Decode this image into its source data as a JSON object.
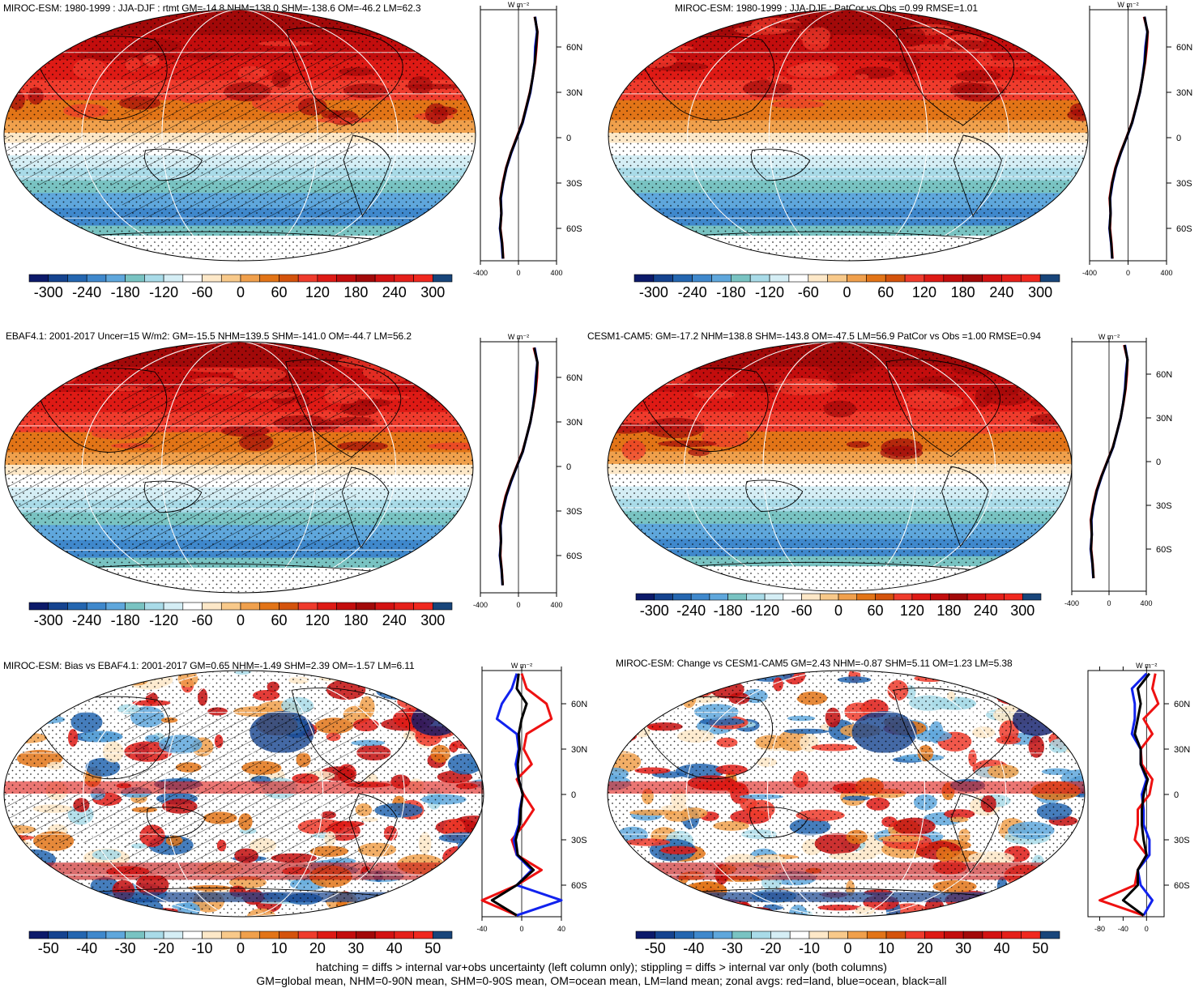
{
  "colors": {
    "full_scale": [
      "#0c1a6a",
      "#15438f",
      "#2466b0",
      "#3f88cc",
      "#5fa7dc",
      "#79c3c2",
      "#a9dbe8",
      "#d5eef5",
      "#ffffff",
      "#fde8c8",
      "#f8c98a",
      "#f0a04c",
      "#e27417",
      "#d4530c",
      "#ef3b2c",
      "#de1a15",
      "#c30d0d",
      "#a20909",
      "#d31212",
      "#e5201a",
      "#f0281f",
      "#18457a"
    ],
    "diff_scale": [
      "#0c1a6a",
      "#15438f",
      "#2466b0",
      "#3f88cc",
      "#5fa7dc",
      "#79c3c2",
      "#a9dbe8",
      "#d5eef5",
      "#ffffff",
      "#fde8c8",
      "#f8c98a",
      "#f0a04c",
      "#e27417",
      "#d4530c",
      "#ef3b2c",
      "#de1a15",
      "#c30d0d",
      "#a20909",
      "#d31212",
      "#e5201a",
      "#f0281f",
      "#18457a"
    ],
    "land_line": "#ee1111",
    "ocean_line": "#1122ee",
    "all_line": "#000000"
  },
  "chart_data": [
    {
      "type": "heatmap",
      "title": "MIROC-ESM: 1980-1999 : JJA-DJF : rtmt GM=-14.8 NHM=138.0 SHM=-138.6 OM=-46.2 LM=62.3",
      "colorbar_labels": [
        "-300",
        "-240",
        "-180",
        "-120",
        "-60",
        "0",
        "60",
        "120",
        "180",
        "240",
        "300"
      ],
      "colorbar_range": [
        -330,
        330
      ],
      "style": "full",
      "hatched": true,
      "zonal": {
        "unit_label": "W m⁻²",
        "xticks": [
          "-400",
          "0",
          "400"
        ],
        "xrange": [
          -400,
          400
        ],
        "lat_labels": [
          "60N",
          "30N",
          "0",
          "30S",
          "60S"
        ],
        "lat_values": [
          60,
          30,
          0,
          -30,
          -60
        ],
        "lat": [
          80,
          70,
          60,
          50,
          40,
          30,
          20,
          10,
          0,
          -10,
          -20,
          -30,
          -40,
          -50,
          -60,
          -70,
          -80
        ],
        "land": [
          170,
          200,
          190,
          175,
          150,
          120,
          80,
          40,
          -20,
          -80,
          -130,
          -165,
          -190,
          -180,
          -190,
          -170,
          -160
        ],
        "ocean": [
          175,
          195,
          175,
          170,
          150,
          125,
          85,
          45,
          -15,
          -75,
          -125,
          -160,
          -185,
          -180,
          -195,
          -175,
          -165
        ],
        "all": [
          172,
          198,
          185,
          172,
          150,
          122,
          82,
          42,
          -17,
          -78,
          -128,
          -162,
          -188,
          -180,
          -192,
          -172,
          -162
        ]
      }
    },
    {
      "type": "heatmap",
      "title": "MIROC-ESM: 1980-1999 : JJA-DJF : PatCor vs Obs =0.99 RMSE=1.01",
      "colorbar_labels": [
        "-300",
        "-240",
        "-180",
        "-120",
        "-60",
        "0",
        "60",
        "120",
        "180",
        "240",
        "300"
      ],
      "colorbar_range": [
        -330,
        330
      ],
      "style": "full",
      "hatched": false,
      "zonal": {
        "unit_label": "W m⁻²",
        "xticks": [
          "-400",
          "0",
          "400"
        ],
        "xrange": [
          -400,
          400
        ],
        "lat_labels": [
          "60N",
          "30N",
          "0",
          "30S",
          "60S"
        ],
        "lat_values": [
          60,
          30,
          0,
          -30,
          -60
        ],
        "lat": [
          80,
          70,
          60,
          50,
          40,
          30,
          20,
          10,
          0,
          -10,
          -20,
          -30,
          -40,
          -50,
          -60,
          -70,
          -80
        ],
        "land": [
          165,
          205,
          195,
          178,
          152,
          122,
          82,
          40,
          -18,
          -80,
          -132,
          -168,
          -192,
          -182,
          -188,
          -172,
          -162
        ],
        "ocean": [
          172,
          200,
          180,
          170,
          150,
          124,
          84,
          44,
          -14,
          -74,
          -126,
          -162,
          -186,
          -182,
          -194,
          -176,
          -166
        ],
        "all": [
          170,
          202,
          188,
          174,
          151,
          123,
          83,
          42,
          -16,
          -77,
          -129,
          -165,
          -189,
          -182,
          -191,
          -174,
          -164
        ]
      }
    },
    {
      "type": "heatmap",
      "title": "EBAF4.1: 2001-2017 Uncer=15 W/m2: GM=-15.5 NHM=139.5 SHM=-141.0 OM=-44.7 LM=56.2",
      "colorbar_labels": [
        "-300",
        "-240",
        "-180",
        "-120",
        "-60",
        "0",
        "60",
        "120",
        "180",
        "240",
        "300"
      ],
      "colorbar_range": [
        -330,
        330
      ],
      "style": "full",
      "hatched": true,
      "zonal": {
        "unit_label": "W m⁻²",
        "xticks": [
          "-400",
          "0",
          "400"
        ],
        "xrange": [
          -400,
          400
        ],
        "lat_labels": [
          "60N",
          "30N",
          "0",
          "30S",
          "60S"
        ],
        "lat_values": [
          60,
          30,
          0,
          -30,
          -60
        ],
        "lat": [
          80,
          70,
          60,
          50,
          40,
          30,
          20,
          10,
          0,
          -10,
          -20,
          -30,
          -40,
          -50,
          -60,
          -70,
          -80
        ],
        "land": [
          160,
          200,
          195,
          180,
          155,
          125,
          85,
          42,
          -20,
          -82,
          -135,
          -170,
          -195,
          -185,
          -190,
          -175,
          -165
        ],
        "ocean": [
          170,
          198,
          182,
          172,
          152,
          126,
          86,
          46,
          -16,
          -76,
          -128,
          -164,
          -188,
          -184,
          -196,
          -178,
          -168
        ],
        "all": [
          166,
          199,
          188,
          176,
          153,
          125,
          85,
          44,
          -18,
          -79,
          -131,
          -167,
          -191,
          -184,
          -193,
          -176,
          -166
        ]
      }
    },
    {
      "type": "heatmap",
      "title": "CESM1-CAM5: GM=-17.2 NHM=138.8 SHM=-143.8 OM=-47.5 LM=56.9 PatCor vs Obs =1.00 RMSE=0.94",
      "colorbar_labels": [
        "-300",
        "-240",
        "-180",
        "-120",
        "-60",
        "0",
        "60",
        "120",
        "180",
        "240",
        "300"
      ],
      "colorbar_range": [
        -330,
        330
      ],
      "style": "full",
      "hatched": false,
      "zonal": {
        "unit_label": "W m⁻²",
        "xticks": [
          "-400",
          "0",
          "400"
        ],
        "xrange": [
          -400,
          400
        ],
        "lat_labels": [
          "60N",
          "30N",
          "0",
          "30S",
          "60S"
        ],
        "lat_values": [
          60,
          30,
          0,
          -30,
          -60
        ],
        "lat": [
          80,
          70,
          60,
          50,
          40,
          30,
          20,
          10,
          0,
          -10,
          -20,
          -30,
          -40,
          -50,
          -60,
          -70,
          -80
        ],
        "land": [
          162,
          198,
          192,
          178,
          154,
          124,
          84,
          41,
          -21,
          -83,
          -136,
          -171,
          -196,
          -186,
          -191,
          -176,
          -166
        ],
        "ocean": [
          171,
          197,
          181,
          171,
          151,
          125,
          85,
          45,
          -17,
          -77,
          -129,
          -165,
          -189,
          -185,
          -197,
          -179,
          -169
        ],
        "all": [
          167,
          198,
          187,
          175,
          152,
          124,
          84,
          43,
          -19,
          -80,
          -132,
          -168,
          -192,
          -185,
          -194,
          -177,
          -167
        ]
      }
    },
    {
      "type": "heatmap",
      "title": "MIROC-ESM: Bias vs EBAF4.1: 2001-2017 GM=0.65 NHM=-1.49 SHM=2.39 OM=-1.57 LM=6.11",
      "colorbar_labels": [
        "-50",
        "-40",
        "-30",
        "-20",
        "-10",
        "0",
        "10",
        "20",
        "30",
        "40",
        "50"
      ],
      "colorbar_range": [
        -55,
        55
      ],
      "style": "diff",
      "hatched": true,
      "zonal": {
        "unit_label": "W m⁻²",
        "xticks": [
          "-40",
          "0",
          "40"
        ],
        "xrange": [
          -40,
          40
        ],
        "lat_labels": [
          "60N",
          "30N",
          "0",
          "30S",
          "60S"
        ],
        "lat_values": [
          60,
          30,
          0,
          -30,
          -60
        ],
        "lat": [
          80,
          70,
          60,
          50,
          40,
          30,
          20,
          10,
          0,
          -10,
          -20,
          -30,
          -40,
          -50,
          -60,
          -70,
          -80
        ],
        "land": [
          0,
          5,
          25,
          30,
          5,
          2,
          10,
          -5,
          2,
          12,
          2,
          -10,
          -5,
          20,
          -5,
          -40,
          -5
        ],
        "ocean": [
          -5,
          -10,
          -20,
          -25,
          -5,
          -3,
          -6,
          -3,
          1,
          -2,
          -3,
          -8,
          -5,
          10,
          -5,
          40,
          -5
        ],
        "all": [
          -3,
          -5,
          5,
          0,
          -3,
          -2,
          -4,
          -3,
          1,
          -1,
          -2,
          -6,
          -4,
          12,
          -5,
          -30,
          -5
        ]
      }
    },
    {
      "type": "heatmap",
      "title": "MIROC-ESM: Change vs CESM1-CAM5 GM=2.43 NHM=-0.87 SHM=5.11 OM=1.23 LM=5.38",
      "colorbar_labels": [
        "-50",
        "-40",
        "-30",
        "-20",
        "-10",
        "0",
        "10",
        "20",
        "30",
        "40",
        "50"
      ],
      "colorbar_range": [
        -55,
        55
      ],
      "style": "diff",
      "hatched": false,
      "zonal": {
        "unit_label": "W m⁻²",
        "xticks": [
          "-80",
          "-40",
          "0"
        ],
        "xrange": [
          -100,
          30
        ],
        "lat_labels": [
          "60N",
          "30N",
          "0",
          "30S",
          "60S"
        ],
        "lat_values": [
          60,
          30,
          0,
          -30,
          -60
        ],
        "lat": [
          80,
          70,
          60,
          50,
          40,
          30,
          20,
          10,
          0,
          -10,
          -20,
          -30,
          -40,
          -50,
          -60,
          -70,
          -80
        ],
        "land": [
          15,
          10,
          20,
          -5,
          10,
          -10,
          -8,
          10,
          5,
          -15,
          -15,
          -20,
          0,
          -15,
          -20,
          -80,
          -5
        ],
        "ocean": [
          0,
          -25,
          -20,
          -20,
          -25,
          -10,
          -10,
          0,
          -8,
          -5,
          -5,
          5,
          5,
          -15,
          -10,
          10,
          -5
        ],
        "all": [
          5,
          -15,
          -10,
          -15,
          -20,
          -10,
          -10,
          2,
          -5,
          -8,
          -8,
          -5,
          0,
          -15,
          -15,
          -40,
          -5
        ]
      }
    }
  ],
  "footer": {
    "line1": "hatching = diffs > internal var+obs uncertainty (left column only); stippling = diffs > internal var only (both columns)",
    "line2": "GM=global mean, NHM=0-90N mean, SHM=0-90S mean, OM=ocean mean, LM=land mean; zonal avgs: red=land, blue=ocean, black=all"
  }
}
